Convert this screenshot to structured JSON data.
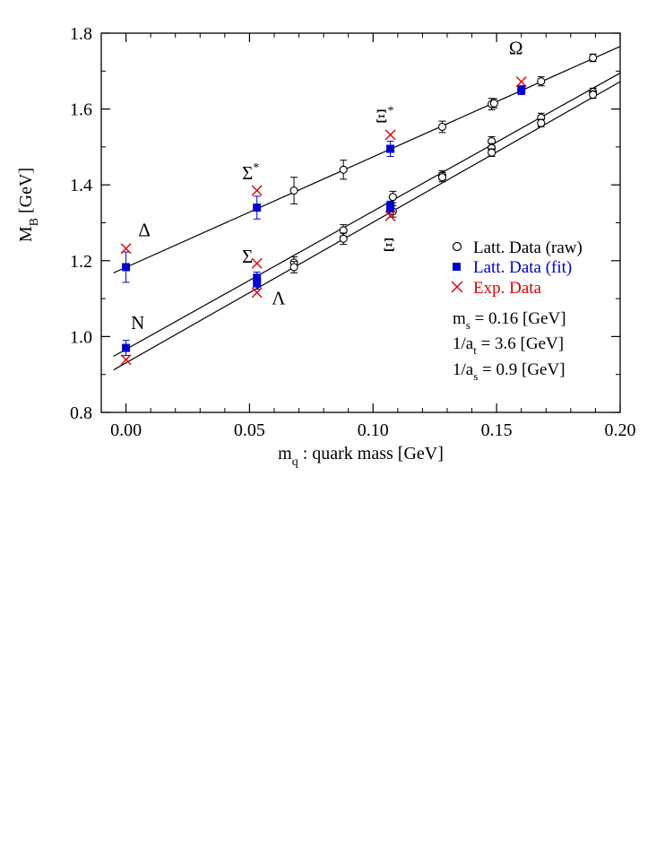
{
  "chart_data": {
    "type": "scatter",
    "xlabel": "m",
    "xlabel_sub": "q",
    "xlabel_rest": " : quark mass [GeV]",
    "ylabel": "M",
    "ylabel_sub": "B",
    "ylabel_rest": " [GeV]",
    "xlim": [
      -0.01,
      0.2
    ],
    "ylim": [
      0.8,
      1.8
    ],
    "xticks": [
      0.0,
      0.05,
      0.1,
      0.15,
      0.2
    ],
    "xtick_labels": [
      "0.00",
      "0.05",
      "0.10",
      "0.15",
      "0.20"
    ],
    "yticks": [
      0.8,
      1.0,
      1.2,
      1.4,
      1.6,
      1.8
    ],
    "ytick_labels": [
      "0.8",
      "1.0",
      "1.2",
      "1.4",
      "1.6",
      "1.8"
    ],
    "colors": {
      "raw": "#000000",
      "fit": "#0000cc",
      "exp": "#dd0000"
    },
    "legend": {
      "placement": "right",
      "entries": [
        {
          "label": "Latt. Data (raw)",
          "marker": "circle",
          "color": "#000000"
        },
        {
          "label": "Latt. Data (fit)",
          "marker": "square",
          "color": "#0000cc"
        },
        {
          "label": "Exp. Data",
          "marker": "x",
          "color": "#dd0000"
        }
      ]
    },
    "parameters": [
      {
        "main": "m",
        "sub": "s",
        "rest": " = 0.16 [GeV]"
      },
      {
        "main": "1/a",
        "sub": "t",
        "rest": " = 3.6 [GeV]"
      },
      {
        "main": "1/a",
        "sub": "s",
        "rest": " = 0.9 [GeV]"
      }
    ],
    "annotations": [
      {
        "label": "N",
        "x": 0.002,
        "y": 1.02
      },
      {
        "label": "Δ",
        "x": 0.005,
        "y": 1.265
      },
      {
        "label": "Σ",
        "x": 0.047,
        "y": 1.195
      },
      {
        "label": "Λ",
        "x": 0.059,
        "y": 1.085
      },
      {
        "label": "Σ",
        "sup": "*",
        "x": 0.047,
        "y": 1.415
      },
      {
        "label": "Ξ",
        "x": 0.104,
        "y": 1.225
      },
      {
        "label": "Ξ",
        "sup": "*",
        "x": 0.101,
        "y": 1.565
      },
      {
        "label": "Ω",
        "x": 0.155,
        "y": 1.745
      }
    ],
    "fit_lines": [
      {
        "x": [
          -0.005,
          0.2
        ],
        "y": [
          1.168,
          1.765
        ]
      },
      {
        "x": [
          -0.005,
          0.2
        ],
        "y": [
          0.948,
          1.695
        ]
      },
      {
        "x": [
          -0.005,
          0.2
        ],
        "y": [
          0.912,
          1.672
        ]
      }
    ],
    "series": [
      {
        "name": "Latt. Data (raw)",
        "points": [
          {
            "x": 0.068,
            "y": 1.385,
            "err": 0.035
          },
          {
            "x": 0.088,
            "y": 1.44,
            "err": 0.025
          },
          {
            "x": 0.128,
            "y": 1.553,
            "err": 0.015
          },
          {
            "x": 0.148,
            "y": 1.613,
            "err": 0.015
          },
          {
            "x": 0.149,
            "y": 1.615,
            "err": 0.012
          },
          {
            "x": 0.168,
            "y": 1.673,
            "err": 0.012
          },
          {
            "x": 0.189,
            "y": 1.735,
            "err": 0.01
          },
          {
            "x": 0.068,
            "y": 1.195,
            "err": 0.015
          },
          {
            "x": 0.068,
            "y": 1.183,
            "err": 0.015
          },
          {
            "x": 0.088,
            "y": 1.28,
            "err": 0.015
          },
          {
            "x": 0.088,
            "y": 1.258,
            "err": 0.015
          },
          {
            "x": 0.108,
            "y": 1.368,
            "err": 0.015
          },
          {
            "x": 0.108,
            "y": 1.33,
            "err": 0.015
          },
          {
            "x": 0.128,
            "y": 1.425,
            "err": 0.012
          },
          {
            "x": 0.128,
            "y": 1.42,
            "err": 0.012
          },
          {
            "x": 0.148,
            "y": 1.515,
            "err": 0.012
          },
          {
            "x": 0.148,
            "y": 1.497,
            "err": 0.012
          },
          {
            "x": 0.148,
            "y": 1.485,
            "err": 0.01
          },
          {
            "x": 0.168,
            "y": 1.577,
            "err": 0.012
          },
          {
            "x": 0.168,
            "y": 1.563,
            "err": 0.01
          },
          {
            "x": 0.189,
            "y": 1.645,
            "err": 0.01
          },
          {
            "x": 0.189,
            "y": 1.638,
            "err": 0.01
          }
        ]
      },
      {
        "name": "Latt. Data (fit)",
        "points": [
          {
            "x": 0.0,
            "y": 1.183,
            "err": 0.04
          },
          {
            "x": 0.0,
            "y": 0.97,
            "err": 0.02
          },
          {
            "x": 0.053,
            "y": 1.34,
            "err": 0.03
          },
          {
            "x": 0.053,
            "y": 1.155,
            "err": 0.015
          },
          {
            "x": 0.053,
            "y": 1.14,
            "err": 0.015
          },
          {
            "x": 0.107,
            "y": 1.495,
            "err": 0.02
          },
          {
            "x": 0.107,
            "y": 1.345,
            "err": 0.012
          },
          {
            "x": 0.107,
            "y": 1.34,
            "err": 0.012
          },
          {
            "x": 0.16,
            "y": 1.65,
            "err": 0.012
          }
        ]
      },
      {
        "name": "Exp. Data",
        "points": [
          {
            "x": 0.0,
            "y": 1.232
          },
          {
            "x": 0.0,
            "y": 0.939
          },
          {
            "x": 0.053,
            "y": 1.385
          },
          {
            "x": 0.053,
            "y": 1.193
          },
          {
            "x": 0.053,
            "y": 1.116
          },
          {
            "x": 0.107,
            "y": 1.532
          },
          {
            "x": 0.107,
            "y": 1.318
          },
          {
            "x": 0.16,
            "y": 1.672
          }
        ]
      }
    ]
  }
}
